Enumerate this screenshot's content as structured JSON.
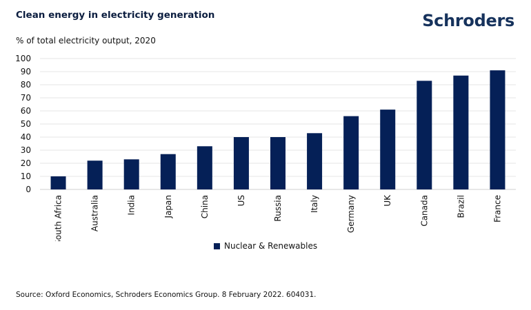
{
  "title": "Clean energy in electricity generation",
  "brand": "Schroders",
  "subtitle": "% of total electricity output, 2020",
  "source": "Source: Oxford Economics, Schroders Economics Group. 8 February 2022. 604031.",
  "colors": {
    "bar": "#052057",
    "text": "#0b1d3f",
    "grid": "#e6e6e6"
  },
  "chart_data": {
    "type": "bar",
    "categories": [
      "South Africa",
      "Australia",
      "India",
      "Japan",
      "China",
      "US",
      "Russia",
      "Italy",
      "Germany",
      "UK",
      "Canada",
      "Brazil",
      "France"
    ],
    "series": [
      {
        "name": "Nuclear & Renewables",
        "values": [
          10,
          22,
          23,
          27,
          33,
          40,
          40,
          43,
          56,
          61,
          83,
          87,
          91
        ]
      }
    ],
    "yticks": [
      0,
      10,
      20,
      30,
      40,
      50,
      60,
      70,
      80,
      90,
      100
    ],
    "ylim": [
      0,
      100
    ],
    "grid": true,
    "legend": "bottom"
  }
}
